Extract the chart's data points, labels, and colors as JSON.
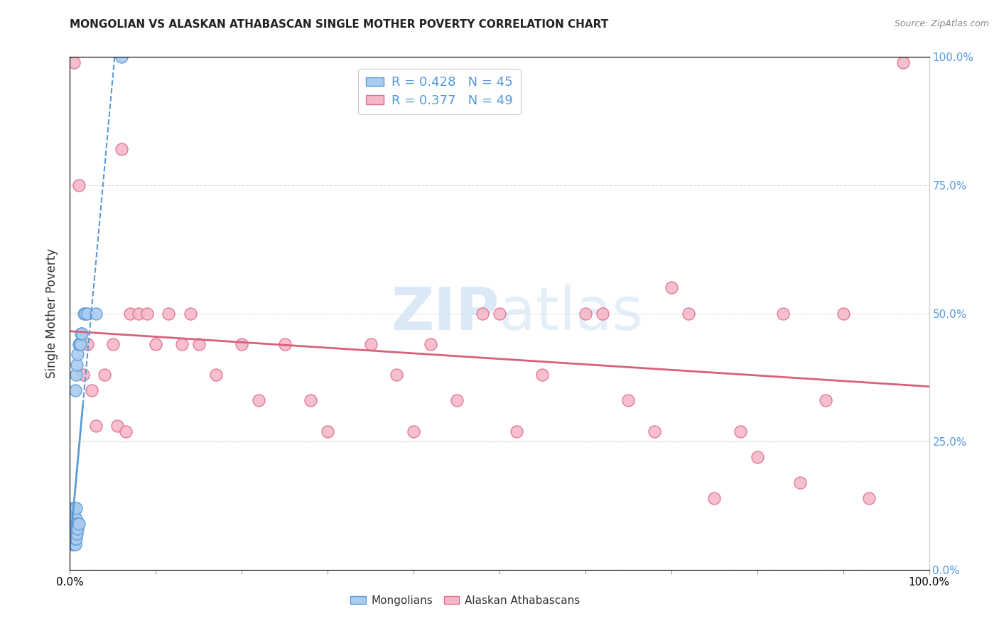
{
  "title": "MONGOLIAN VS ALASKAN ATHABASCAN SINGLE MOTHER POVERTY CORRELATION CHART",
  "source": "Source: ZipAtlas.com",
  "ylabel": "Single Mother Poverty",
  "mongolian_R": 0.428,
  "mongolian_N": 45,
  "athabascan_R": 0.377,
  "athabascan_N": 49,
  "mongolian_color": "#aaccf0",
  "athabascan_color": "#f5b8c8",
  "mongolian_edge_color": "#5b9bd5",
  "athabascan_edge_color": "#e07090",
  "mongolian_line_color": "#5b9bd5",
  "athabascan_line_color": "#d9607a",
  "watermark_color": "#cce0f5",
  "background_color": "#ffffff",
  "grid_color": "#dddddd",
  "right_tick_color": "#5599dd",
  "mongolian_x": [
    0.002,
    0.002,
    0.003,
    0.003,
    0.003,
    0.003,
    0.004,
    0.004,
    0.004,
    0.004,
    0.005,
    0.005,
    0.005,
    0.005,
    0.005,
    0.005,
    0.005,
    0.005,
    0.006,
    0.006,
    0.006,
    0.006,
    0.006,
    0.006,
    0.007,
    0.007,
    0.007,
    0.007,
    0.007,
    0.008,
    0.008,
    0.008,
    0.009,
    0.009,
    0.01,
    0.01,
    0.011,
    0.012,
    0.013,
    0.014,
    0.016,
    0.018,
    0.02,
    0.03,
    0.06
  ],
  "mongolian_y": [
    0.06,
    0.08,
    0.05,
    0.07,
    0.09,
    0.11,
    0.06,
    0.08,
    0.1,
    0.12,
    0.05,
    0.06,
    0.07,
    0.08,
    0.09,
    0.1,
    0.11,
    0.12,
    0.05,
    0.06,
    0.07,
    0.08,
    0.09,
    0.35,
    0.06,
    0.08,
    0.1,
    0.12,
    0.38,
    0.07,
    0.09,
    0.4,
    0.08,
    0.42,
    0.09,
    0.44,
    0.44,
    0.44,
    0.46,
    0.46,
    0.5,
    0.5,
    0.5,
    0.5,
    1.0
  ],
  "athabascan_x": [
    0.005,
    0.01,
    0.015,
    0.02,
    0.025,
    0.03,
    0.04,
    0.05,
    0.055,
    0.06,
    0.065,
    0.07,
    0.08,
    0.09,
    0.1,
    0.115,
    0.13,
    0.14,
    0.15,
    0.17,
    0.2,
    0.22,
    0.25,
    0.28,
    0.3,
    0.35,
    0.38,
    0.4,
    0.42,
    0.45,
    0.48,
    0.5,
    0.52,
    0.55,
    0.6,
    0.62,
    0.65,
    0.68,
    0.7,
    0.72,
    0.75,
    0.78,
    0.8,
    0.83,
    0.85,
    0.88,
    0.9,
    0.93,
    0.97
  ],
  "athabascan_y": [
    0.99,
    0.75,
    0.38,
    0.44,
    0.35,
    0.28,
    0.38,
    0.44,
    0.28,
    0.82,
    0.27,
    0.5,
    0.5,
    0.5,
    0.44,
    0.5,
    0.44,
    0.5,
    0.44,
    0.38,
    0.44,
    0.33,
    0.44,
    0.33,
    0.27,
    0.44,
    0.38,
    0.27,
    0.44,
    0.33,
    0.5,
    0.5,
    0.27,
    0.38,
    0.5,
    0.5,
    0.33,
    0.27,
    0.55,
    0.5,
    0.14,
    0.27,
    0.22,
    0.5,
    0.17,
    0.33,
    0.5,
    0.14,
    0.99
  ],
  "xlim": [
    0,
    1
  ],
  "ylim": [
    0,
    1
  ]
}
